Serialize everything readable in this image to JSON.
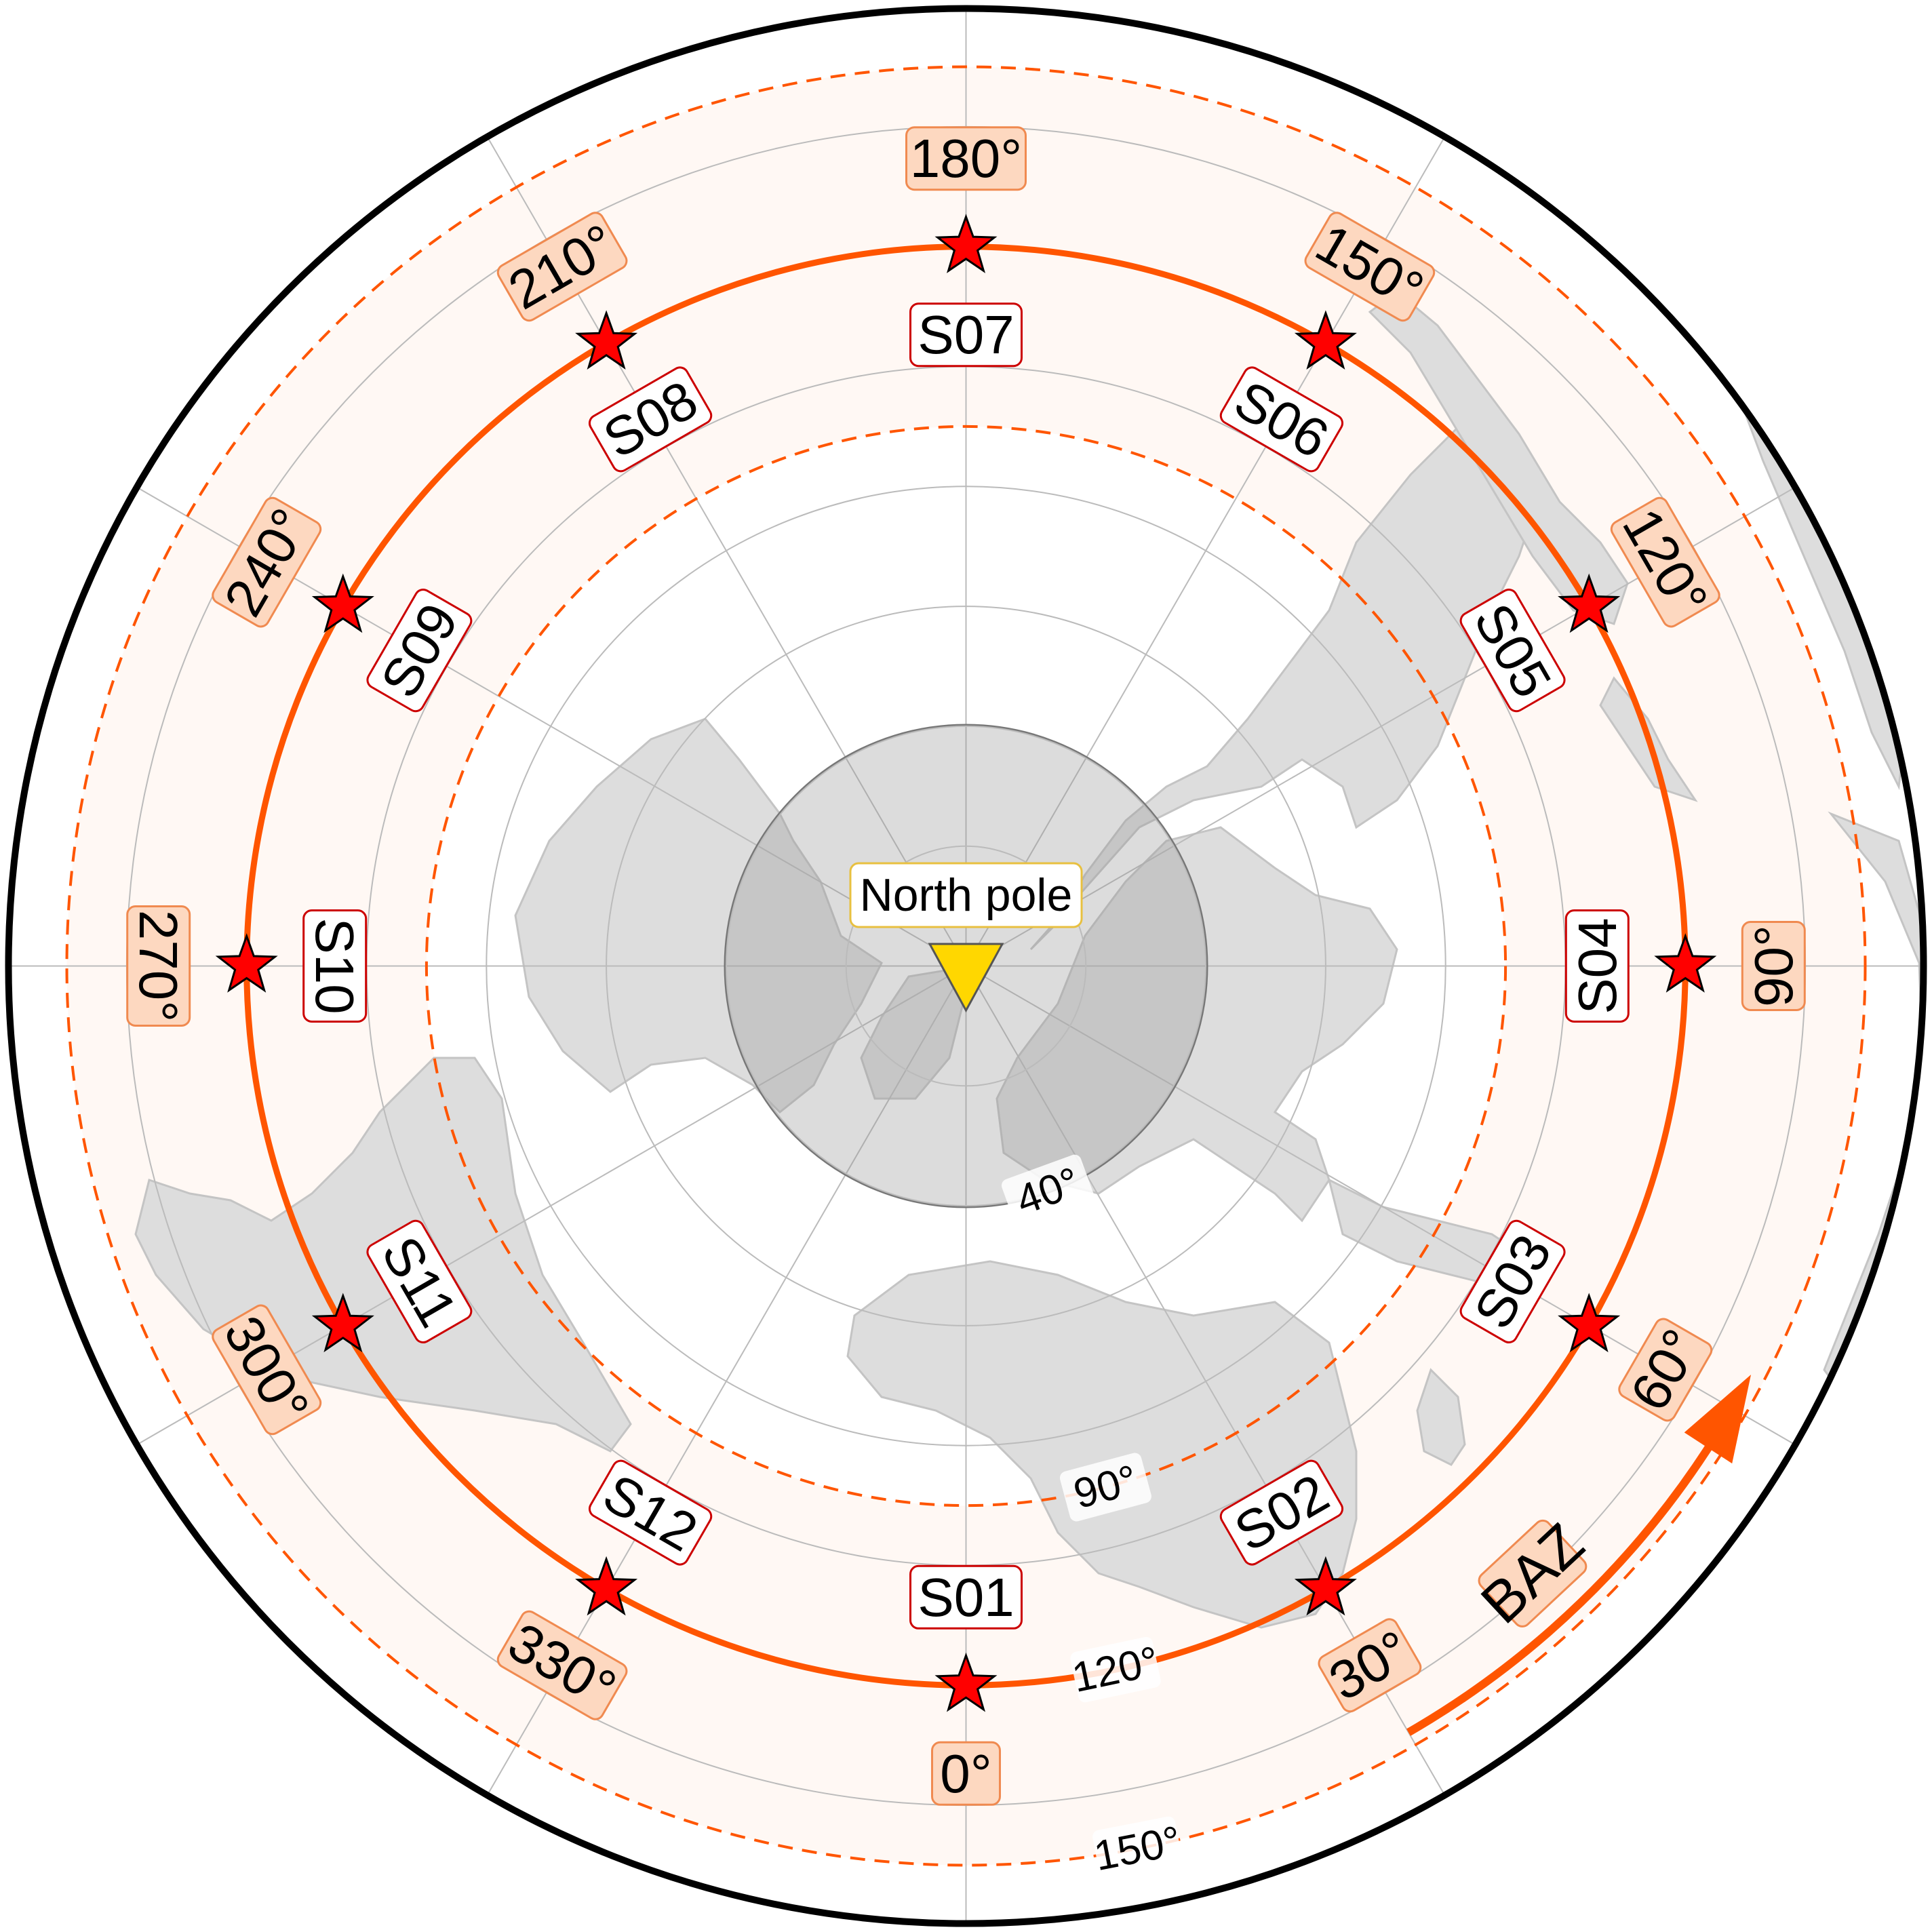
{
  "map": {
    "projection": "azimuthal-equidistant",
    "center": "North pole",
    "pole_label": "North pole",
    "arrow_label": "BAZ",
    "colors": {
      "ring": "#ff5500",
      "ring_fill": "#fff8f4",
      "label_fill": "#fdd8c0",
      "label_stroke": "#f08a50",
      "star": "#ff0000",
      "pole_marker": "#ffd700",
      "land": "#dddddd",
      "grid": "#bbbbbb",
      "station_box_stroke": "#cc0000"
    },
    "distance_rings": [
      {
        "deg": 40,
        "label": "40°"
      },
      {
        "deg": 90,
        "label": "90°"
      },
      {
        "deg": 120,
        "label": "120°"
      },
      {
        "deg": 150,
        "label": "150°"
      }
    ],
    "stations": [
      {
        "id": "S01",
        "baz": 0,
        "baz_label": "0°"
      },
      {
        "id": "S02",
        "baz": 30,
        "baz_label": "30°"
      },
      {
        "id": "S03",
        "baz": 60,
        "baz_label": "60°"
      },
      {
        "id": "S04",
        "baz": 90,
        "baz_label": "90°"
      },
      {
        "id": "S05",
        "baz": 120,
        "baz_label": "120°"
      },
      {
        "id": "S06",
        "baz": 150,
        "baz_label": "150°"
      },
      {
        "id": "S07",
        "baz": 180,
        "baz_label": "180°"
      },
      {
        "id": "S08",
        "baz": 210,
        "baz_label": "210°"
      },
      {
        "id": "S09",
        "baz": 240,
        "baz_label": "240°"
      },
      {
        "id": "S10",
        "baz": 270,
        "baz_label": "270°"
      },
      {
        "id": "S11",
        "baz": 300,
        "baz_label": "300°"
      },
      {
        "id": "S12",
        "baz": 330,
        "baz_label": "330°"
      }
    ]
  }
}
